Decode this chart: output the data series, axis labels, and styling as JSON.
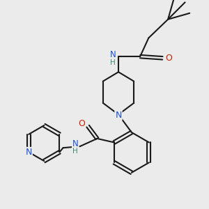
{
  "background_color": "#ebebeb",
  "bond_color": "#1a1a1a",
  "atom_colors": {
    "N": "#1a4fd6",
    "O": "#cc2200",
    "H": "#3a8a7a",
    "C": "#1a1a1a"
  },
  "figsize": [
    3.0,
    3.0
  ],
  "dpi": 100
}
